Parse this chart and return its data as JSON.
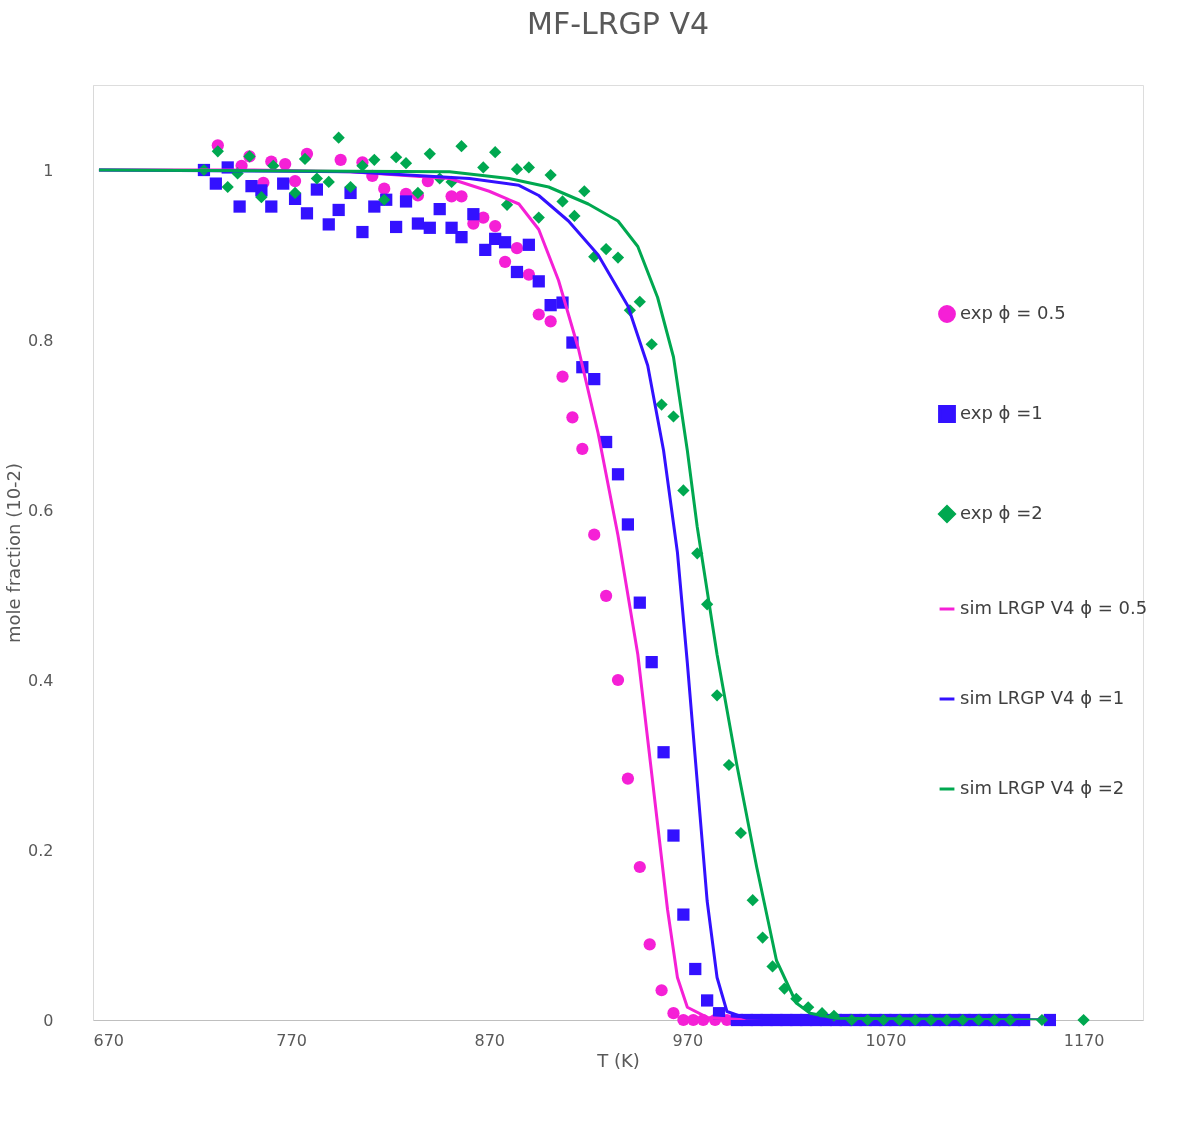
{
  "chart_data": {
    "type": "scatter",
    "title": "MF-LRGP V4",
    "xlabel": "T (K)",
    "ylabel": "mole fraction (10-2)",
    "xlim": [
      670,
      1200
    ],
    "xticks": [
      670,
      770,
      870,
      970,
      1070,
      1170
    ],
    "ylim": [
      0,
      1.1
    ],
    "yticks": [
      0,
      0.2,
      0.4,
      0.6,
      0.8,
      1
    ],
    "grid": false,
    "legend": "right",
    "series": [
      {
        "name": "exp ϕ = 0.5",
        "marker": "circle",
        "color": "#f520d6",
        "x": [
          733,
          745,
          749,
          756,
          760,
          767,
          772,
          778,
          795,
          806,
          811,
          817,
          828,
          834,
          839,
          851,
          856,
          862,
          867,
          873,
          878,
          884,
          890,
          895,
          901,
          907,
          912,
          917,
          923,
          929,
          935,
          940,
          946,
          951,
          957,
          963,
          968,
          973,
          978,
          984,
          990
        ],
        "values": [
          1.029,
          1.005,
          1.016,
          0.985,
          1.01,
          1.007,
          0.987,
          1.019,
          1.012,
          1.009,
          0.993,
          0.978,
          0.972,
          0.97,
          0.987,
          0.969,
          0.969,
          0.937,
          0.944,
          0.934,
          0.892,
          0.908,
          0.877,
          0.83,
          0.822,
          0.757,
          0.709,
          0.672,
          0.571,
          0.499,
          0.4,
          0.284,
          0.18,
          0.089,
          0.035,
          0.008,
          0,
          0,
          0,
          0,
          0
        ]
      },
      {
        "name": "exp ϕ =1",
        "marker": "square",
        "color": "#3311ff",
        "x": [
          726,
          732,
          738,
          744,
          750,
          755,
          760,
          766,
          772,
          778,
          783,
          789,
          794,
          800,
          806,
          812,
          818,
          823,
          828,
          834,
          840,
          845,
          851,
          856,
          862,
          868,
          873,
          878,
          884,
          890,
          895,
          901,
          907,
          912,
          917,
          923,
          929,
          935,
          940,
          946,
          952,
          958,
          963,
          968,
          974,
          980,
          986,
          995,
          1000,
          1005,
          1010,
          1015,
          1020,
          1025,
          1030,
          1035,
          1040,
          1045,
          1050,
          1055,
          1060,
          1065,
          1070,
          1075,
          1080,
          1085,
          1090,
          1095,
          1100,
          1105,
          1110,
          1115,
          1120,
          1125,
          1130,
          1135,
          1140,
          1153
        ],
        "values": [
          1,
          0.984,
          1.003,
          0.957,
          0.981,
          0.976,
          0.957,
          0.984,
          0.966,
          0.949,
          0.977,
          0.936,
          0.953,
          0.973,
          0.927,
          0.957,
          0.965,
          0.933,
          0.963,
          0.937,
          0.932,
          0.954,
          0.932,
          0.921,
          0.948,
          0.906,
          0.919,
          0.915,
          0.88,
          0.912,
          0.869,
          0.841,
          0.844,
          0.797,
          0.768,
          0.754,
          0.68,
          0.642,
          0.583,
          0.491,
          0.421,
          0.315,
          0.217,
          0.124,
          0.06,
          0.023,
          0.008,
          0,
          0,
          0,
          0,
          0,
          0,
          0,
          0,
          0,
          0,
          0,
          0,
          0,
          0,
          0,
          0,
          0,
          0,
          0,
          0,
          0,
          0,
          0,
          0,
          0,
          0,
          0,
          0,
          0,
          0,
          0
        ]
      },
      {
        "name": "exp ϕ =2",
        "marker": "diamond",
        "color": "#00a850",
        "x": [
          726,
          733,
          738,
          743,
          749,
          755,
          761,
          772,
          777,
          783,
          789,
          794,
          800,
          806,
          812,
          817,
          823,
          828,
          834,
          840,
          845,
          851,
          856,
          867,
          873,
          879,
          884,
          890,
          895,
          901,
          907,
          913,
          918,
          923,
          929,
          935,
          941,
          946,
          952,
          957,
          963,
          968,
          975,
          980,
          985,
          991,
          997,
          1003,
          1008,
          1013,
          1019,
          1025,
          1031,
          1038,
          1044,
          1053,
          1061,
          1069,
          1077,
          1085,
          1093,
          1101,
          1109,
          1117,
          1125,
          1133,
          1149,
          1170
        ],
        "values": [
          1,
          1.022,
          0.98,
          0.996,
          1.016,
          0.968,
          1.005,
          0.973,
          1.013,
          0.99,
          0.986,
          1.038,
          0.98,
          1.005,
          1.012,
          0.965,
          1.015,
          1.008,
          0.973,
          1.019,
          0.99,
          0.986,
          1.028,
          1.003,
          1.021,
          0.959,
          1.001,
          1.003,
          0.944,
          0.994,
          0.963,
          0.946,
          0.975,
          0.898,
          0.907,
          0.897,
          0.835,
          0.845,
          0.795,
          0.724,
          0.71,
          0.623,
          0.549,
          0.489,
          0.382,
          0.3,
          0.22,
          0.141,
          0.097,
          0.063,
          0.037,
          0.025,
          0.015,
          0.008,
          0.005,
          0,
          0,
          0,
          0,
          0,
          0,
          0,
          0,
          0,
          0,
          0,
          0,
          0
        ]
      },
      {
        "name": "sim LRGP V4 ϕ = 0.5",
        "type": "line",
        "marker": "none",
        "color": "#f520d6",
        "x": [
          673,
          750,
          800,
          850,
          870,
          885,
          895,
          905,
          915,
          925,
          935,
          945,
          950,
          955,
          960,
          965,
          970,
          980,
          1000,
          1150
        ],
        "values": [
          1,
          1,
          0.998,
          0.99,
          0.975,
          0.96,
          0.93,
          0.87,
          0.79,
          0.69,
          0.57,
          0.43,
          0.33,
          0.23,
          0.13,
          0.05,
          0.015,
          0.003,
          0,
          0
        ]
      },
      {
        "name": "sim LRGP V4 ϕ =1",
        "type": "line",
        "marker": "none",
        "color": "#3311ff",
        "x": [
          673,
          800,
          860,
          885,
          895,
          910,
          925,
          940,
          950,
          958,
          965,
          970,
          975,
          980,
          985,
          990,
          1000,
          1150
        ],
        "values": [
          1,
          0.998,
          0.99,
          0.982,
          0.97,
          0.94,
          0.9,
          0.84,
          0.77,
          0.67,
          0.55,
          0.42,
          0.28,
          0.14,
          0.05,
          0.01,
          0.002,
          0
        ]
      },
      {
        "name": "sim LRGP V4 ϕ =2",
        "type": "line",
        "marker": "none",
        "color": "#00a850",
        "x": [
          673,
          850,
          880,
          900,
          920,
          935,
          945,
          955,
          963,
          970,
          975,
          985,
          995,
          1005,
          1015,
          1025,
          1032,
          1045,
          1150
        ],
        "values": [
          1,
          0.998,
          0.99,
          0.98,
          0.96,
          0.94,
          0.91,
          0.85,
          0.78,
          0.67,
          0.58,
          0.43,
          0.3,
          0.18,
          0.07,
          0.02,
          0.008,
          0.002,
          0
        ]
      }
    ]
  }
}
